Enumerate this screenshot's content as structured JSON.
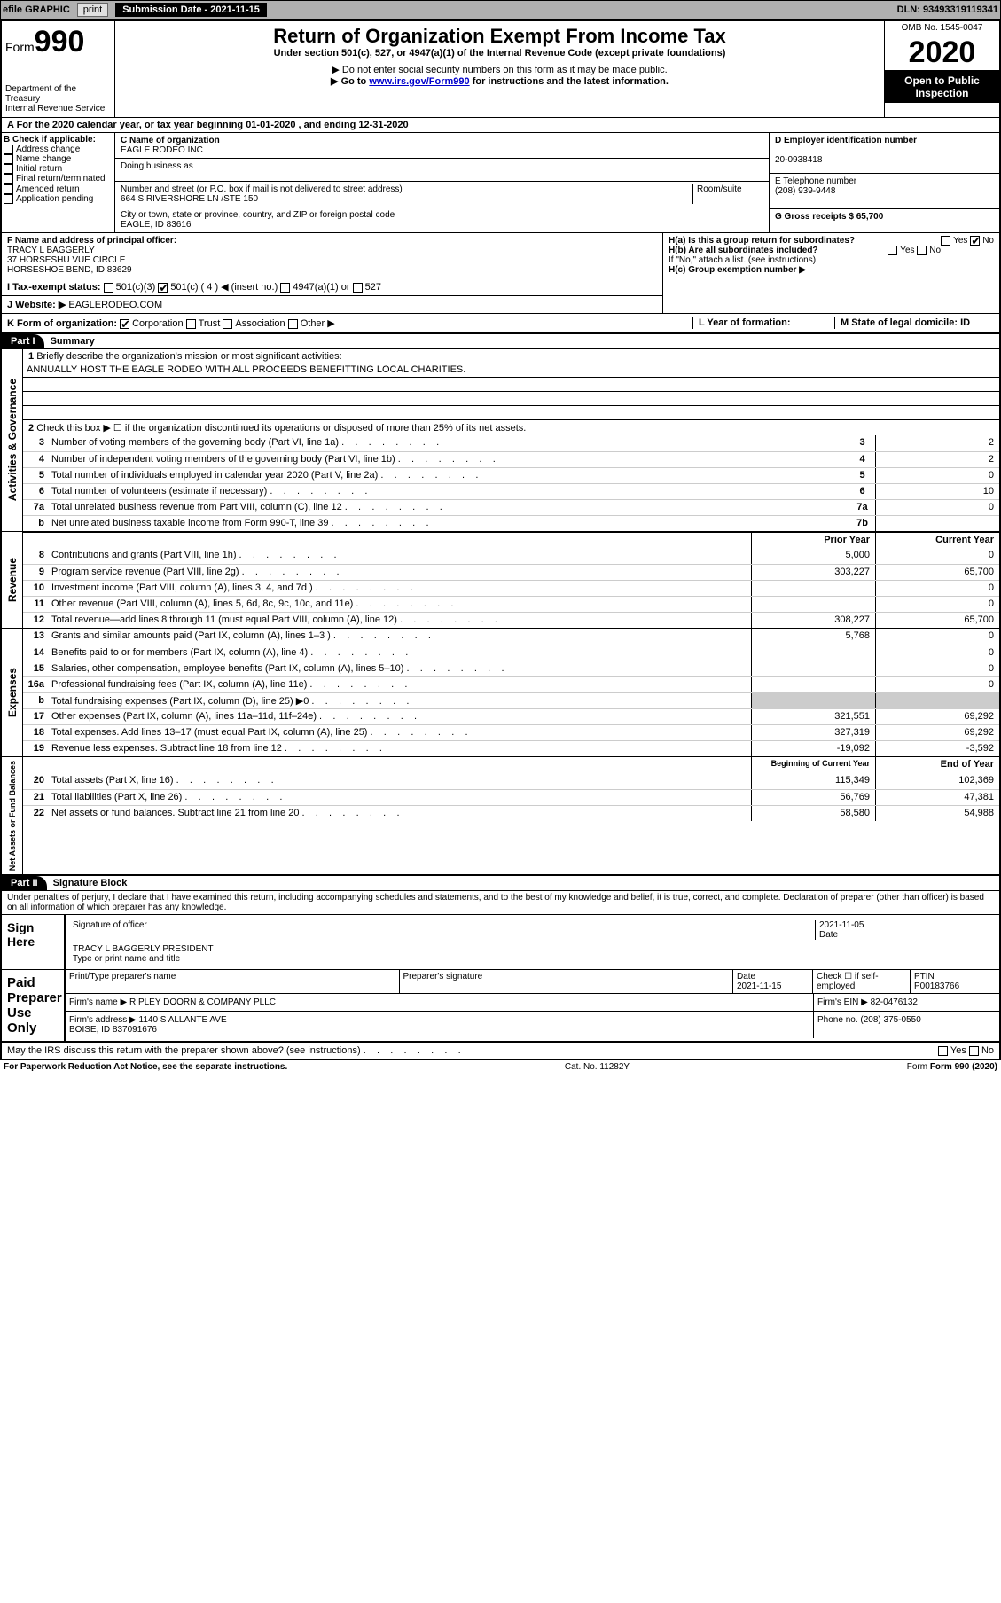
{
  "toolbar": {
    "efile": "efile GRAPHIC",
    "print": "print",
    "subdate_label": "Submission Date - 2021-11-15",
    "dln": "DLN: 93493319119341"
  },
  "header": {
    "form_label": "Form",
    "form_num": "990",
    "dept": "Department of the Treasury\nInternal Revenue Service",
    "title": "Return of Organization Exempt From Income Tax",
    "subtitle": "Under section 501(c), 527, or 4947(a)(1) of the Internal Revenue Code (except private foundations)",
    "note1": "▶ Do not enter social security numbers on this form as it may be made public.",
    "note2_pre": "▶ Go to ",
    "note2_link": "www.irs.gov/Form990",
    "note2_post": " for instructions and the latest information.",
    "omb": "OMB No. 1545-0047",
    "year": "2020",
    "open": "Open to Public Inspection"
  },
  "line_a": "A For the 2020 calendar year, or tax year beginning 01-01-2020   , and ending 12-31-2020",
  "col_b": {
    "label": "B Check if applicable:",
    "items": [
      "Address change",
      "Name change",
      "Initial return",
      "Final return/terminated",
      "Amended return",
      "Application pending"
    ]
  },
  "col_c": {
    "c_label": "C Name of organization",
    "c_val": "EAGLE RODEO INC",
    "dba": "Doing business as",
    "addr_label": "Number and street (or P.O. box if mail is not delivered to street address)",
    "room": "Room/suite",
    "addr_val": "664 S RIVERSHORE LN /STE 150",
    "city_label": "City or town, state or province, country, and ZIP or foreign postal code",
    "city_val": "EAGLE, ID  83616"
  },
  "col_d": {
    "d_label": "D Employer identification number",
    "d_val": "20-0938418",
    "e_label": "E Telephone number",
    "e_val": "(208) 939-9448",
    "g_label": "G Gross receipts $ 65,700"
  },
  "off": {
    "f_label": "F Name and address of principal officer:",
    "f_val": "TRACY L BAGGERLY\n37 HORSESHU VUE CIRCLE\nHORSESHOE BEND, ID  83629",
    "i_label": "I Tax-exempt status:",
    "i_opts": [
      "501(c)(3)",
      "501(c) ( 4 ) ◀ (insert no.)",
      "4947(a)(1) or",
      "527"
    ],
    "j_label": "J Website: ▶",
    "j_val": "EAGLERODEO.COM",
    "ha": "H(a)  Is this a group return for subordinates?",
    "hb": "H(b)  Are all subordinates included?",
    "hb_note": "If \"No,\" attach a list. (see instructions)",
    "hc": "H(c)  Group exemption number ▶",
    "yes": "Yes",
    "no": "No"
  },
  "k": {
    "label": "K Form of organization:",
    "opts": [
      "Corporation",
      "Trust",
      "Association",
      "Other ▶"
    ],
    "l": "L Year of formation:",
    "m": "M State of legal domicile: ID"
  },
  "part1": {
    "header": "Part I",
    "title": "Summary",
    "q1_label": "1",
    "q1": "Briefly describe the organization's mission or most significant activities:",
    "q1_val": "ANNUALLY HOST THE EAGLE RODEO WITH ALL PROCEEDS BENEFITTING LOCAL CHARITIES.",
    "q2": "Check this box ▶ ☐  if the organization discontinued its operations or disposed of more than 25% of its net assets.",
    "sideA": "Activities & Governance",
    "sideR": "Revenue",
    "sideE": "Expenses",
    "sideN": "Net Assets or Fund Balances",
    "simple_rows": [
      {
        "n": "3",
        "t": "Number of voting members of the governing body (Part VI, line 1a)",
        "c": "3",
        "v": "2"
      },
      {
        "n": "4",
        "t": "Number of independent voting members of the governing body (Part VI, line 1b)",
        "c": "4",
        "v": "2"
      },
      {
        "n": "5",
        "t": "Total number of individuals employed in calendar year 2020 (Part V, line 2a)",
        "c": "5",
        "v": "0"
      },
      {
        "n": "6",
        "t": "Total number of volunteers (estimate if necessary)",
        "c": "6",
        "v": "10"
      },
      {
        "n": "7a",
        "t": "Total unrelated business revenue from Part VIII, column (C), line 12",
        "c": "7a",
        "v": "0"
      },
      {
        "n": "b",
        "t": "Net unrelated business taxable income from Form 990-T, line 39",
        "c": "7b",
        "v": ""
      }
    ],
    "head_prior": "Prior Year",
    "head_curr": "Current Year",
    "rev_rows": [
      {
        "n": "8",
        "t": "Contributions and grants (Part VIII, line 1h)",
        "p": "5,000",
        "c": "0"
      },
      {
        "n": "9",
        "t": "Program service revenue (Part VIII, line 2g)",
        "p": "303,227",
        "c": "65,700"
      },
      {
        "n": "10",
        "t": "Investment income (Part VIII, column (A), lines 3, 4, and 7d )",
        "p": "",
        "c": "0"
      },
      {
        "n": "11",
        "t": "Other revenue (Part VIII, column (A), lines 5, 6d, 8c, 9c, 10c, and 11e)",
        "p": "",
        "c": "0"
      },
      {
        "n": "12",
        "t": "Total revenue—add lines 8 through 11 (must equal Part VIII, column (A), line 12)",
        "p": "308,227",
        "c": "65,700"
      }
    ],
    "exp_rows": [
      {
        "n": "13",
        "t": "Grants and similar amounts paid (Part IX, column (A), lines 1–3 )",
        "p": "5,768",
        "c": "0"
      },
      {
        "n": "14",
        "t": "Benefits paid to or for members (Part IX, column (A), line 4)",
        "p": "",
        "c": "0"
      },
      {
        "n": "15",
        "t": "Salaries, other compensation, employee benefits (Part IX, column (A), lines 5–10)",
        "p": "",
        "c": "0"
      },
      {
        "n": "16a",
        "t": "Professional fundraising fees (Part IX, column (A), line 11e)",
        "p": "",
        "c": "0"
      },
      {
        "n": "b",
        "t": "Total fundraising expenses (Part IX, column (D), line 25) ▶0",
        "p": "__gray__",
        "c": "__gray__"
      },
      {
        "n": "17",
        "t": "Other expenses (Part IX, column (A), lines 11a–11d, 11f–24e)",
        "p": "321,551",
        "c": "69,292"
      },
      {
        "n": "18",
        "t": "Total expenses. Add lines 13–17 (must equal Part IX, column (A), line 25)",
        "p": "327,319",
        "c": "69,292"
      },
      {
        "n": "19",
        "t": "Revenue less expenses. Subtract line 18 from line 12",
        "p": "-19,092",
        "c": "-3,592"
      }
    ],
    "head_beg": "Beginning of Current Year",
    "head_end": "End of Year",
    "net_rows": [
      {
        "n": "20",
        "t": "Total assets (Part X, line 16)",
        "p": "115,349",
        "c": "102,369"
      },
      {
        "n": "21",
        "t": "Total liabilities (Part X, line 26)",
        "p": "56,769",
        "c": "47,381"
      },
      {
        "n": "22",
        "t": "Net assets or fund balances. Subtract line 21 from line 20",
        "p": "58,580",
        "c": "54,988"
      }
    ]
  },
  "part2": {
    "header": "Part II",
    "title": "Signature Block",
    "penalty": "Under penalties of perjury, I declare that I have examined this return, including accompanying schedules and statements, and to the best of my knowledge and belief, it is true, correct, and complete. Declaration of preparer (other than officer) is based on all information of which preparer has any knowledge.",
    "sign_here": "Sign Here",
    "sig_officer": "Signature of officer",
    "sig_date": "2021-11-05",
    "date_lbl": "Date",
    "officer_name": "TRACY L BAGGERLY  PRESIDENT",
    "type_name": "Type or print name and title",
    "paid": "Paid Preparer Use Only",
    "prep_name_lbl": "Print/Type preparer's name",
    "prep_sig_lbl": "Preparer's signature",
    "prep_date_lbl": "Date",
    "prep_date": "2021-11-15",
    "check_self": "Check ☐ if self-employed",
    "ptin_lbl": "PTIN",
    "ptin": "P00183766",
    "firm_name_lbl": "Firm's name    ▶",
    "firm_name": "RIPLEY DOORN & COMPANY PLLC",
    "firm_ein_lbl": "Firm's EIN ▶",
    "firm_ein": "82-0476132",
    "firm_addr_lbl": "Firm's address ▶",
    "firm_addr": "1140 S ALLANTE AVE\nBOISE, ID  837091676",
    "phone_lbl": "Phone no.",
    "phone": "(208) 375-0550",
    "irs_q": "May the IRS discuss this return with the preparer shown above? (see instructions)",
    "yes": "Yes",
    "no": "No"
  },
  "footer": {
    "left": "For Paperwork Reduction Act Notice, see the separate instructions.",
    "mid": "Cat. No. 11282Y",
    "right": "Form 990 (2020)"
  }
}
